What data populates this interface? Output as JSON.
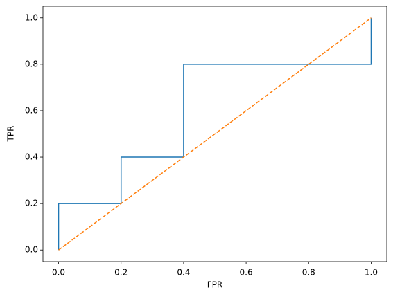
{
  "chart_data": {
    "type": "line",
    "xlabel": "FPR",
    "ylabel": "TPR",
    "series": [
      {
        "color": "#1f77b4",
        "line_style": "solid",
        "x": [
          0.0,
          0.0,
          0.2,
          0.2,
          0.4,
          0.4,
          1.0,
          1.0
        ],
        "values": [
          0.0,
          0.2,
          0.2,
          0.4,
          0.4,
          0.8,
          0.8,
          1.0
        ]
      },
      {
        "color": "#ff7f0e",
        "line_style": "dashed",
        "x": [
          0.0,
          1.0
        ],
        "values": [
          0.0,
          1.0
        ]
      }
    ],
    "xlim": [
      -0.05,
      1.05
    ],
    "ylim": [
      -0.05,
      1.05
    ],
    "xticks": [
      {
        "value": 0,
        "label": "0.0"
      },
      0.2,
      0.4,
      0.6,
      0.8,
      {
        "value": 1,
        "label": "1.0"
      }
    ],
    "yticks": [
      {
        "value": 0,
        "label": "0.0"
      },
      0.2,
      0.4,
      0.6,
      0.8,
      {
        "value": 1,
        "label": "1.0"
      }
    ],
    "grid": false
  }
}
